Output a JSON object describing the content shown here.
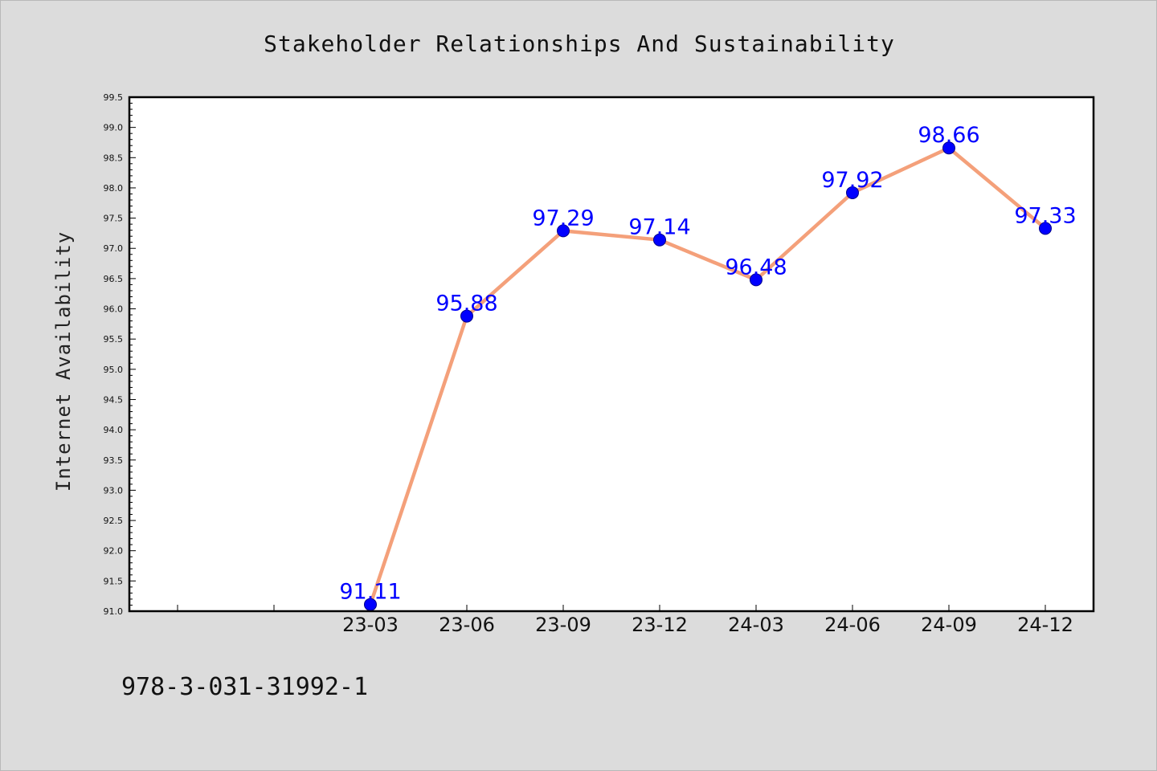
{
  "chart_data": {
    "type": "line",
    "title": "Stakeholder Relationships And Sustainability",
    "xlabel": "",
    "ylabel": "Internet Availability",
    "categories": [
      "23-03",
      "23-06",
      "23-09",
      "23-12",
      "24-03",
      "24-06",
      "24-09",
      "24-12"
    ],
    "series": [
      {
        "values": [
          91.11,
          95.88,
          97.29,
          97.14,
          96.48,
          97.92,
          98.66,
          97.33
        ],
        "line_color": "#f4a07a",
        "marker_color": "#0000ff"
      }
    ],
    "data_labels": [
      "91.11",
      "95.88",
      "97.29",
      "97.14",
      "96.48",
      "97.92",
      "98.66",
      "97.33"
    ],
    "ylim": [
      91.0,
      99.5
    ],
    "yticks": [
      "91.0",
      "91.5",
      "92.0",
      "92.5",
      "93.0",
      "93.5",
      "94.0",
      "94.5",
      "95.0",
      "95.5",
      "96.0",
      "96.5",
      "97.0",
      "97.5",
      "98.0",
      "98.5",
      "99.0",
      "99.5"
    ],
    "grid": false,
    "legend": "none"
  },
  "footer": {
    "isbn": "978-3-031-31992-1"
  },
  "colors": {
    "figure_background": "#dcdcdc",
    "plot_background": "#ffffff",
    "line": "#f4a07a",
    "marker": "#0000ff",
    "data_label": "#0000ff"
  }
}
